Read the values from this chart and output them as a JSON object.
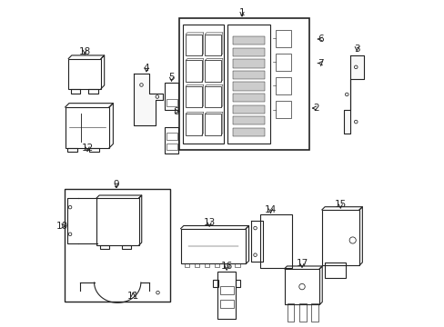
{
  "background_color": "#ffffff",
  "line_color": "#222222",
  "label_fontsize": 7.5
}
